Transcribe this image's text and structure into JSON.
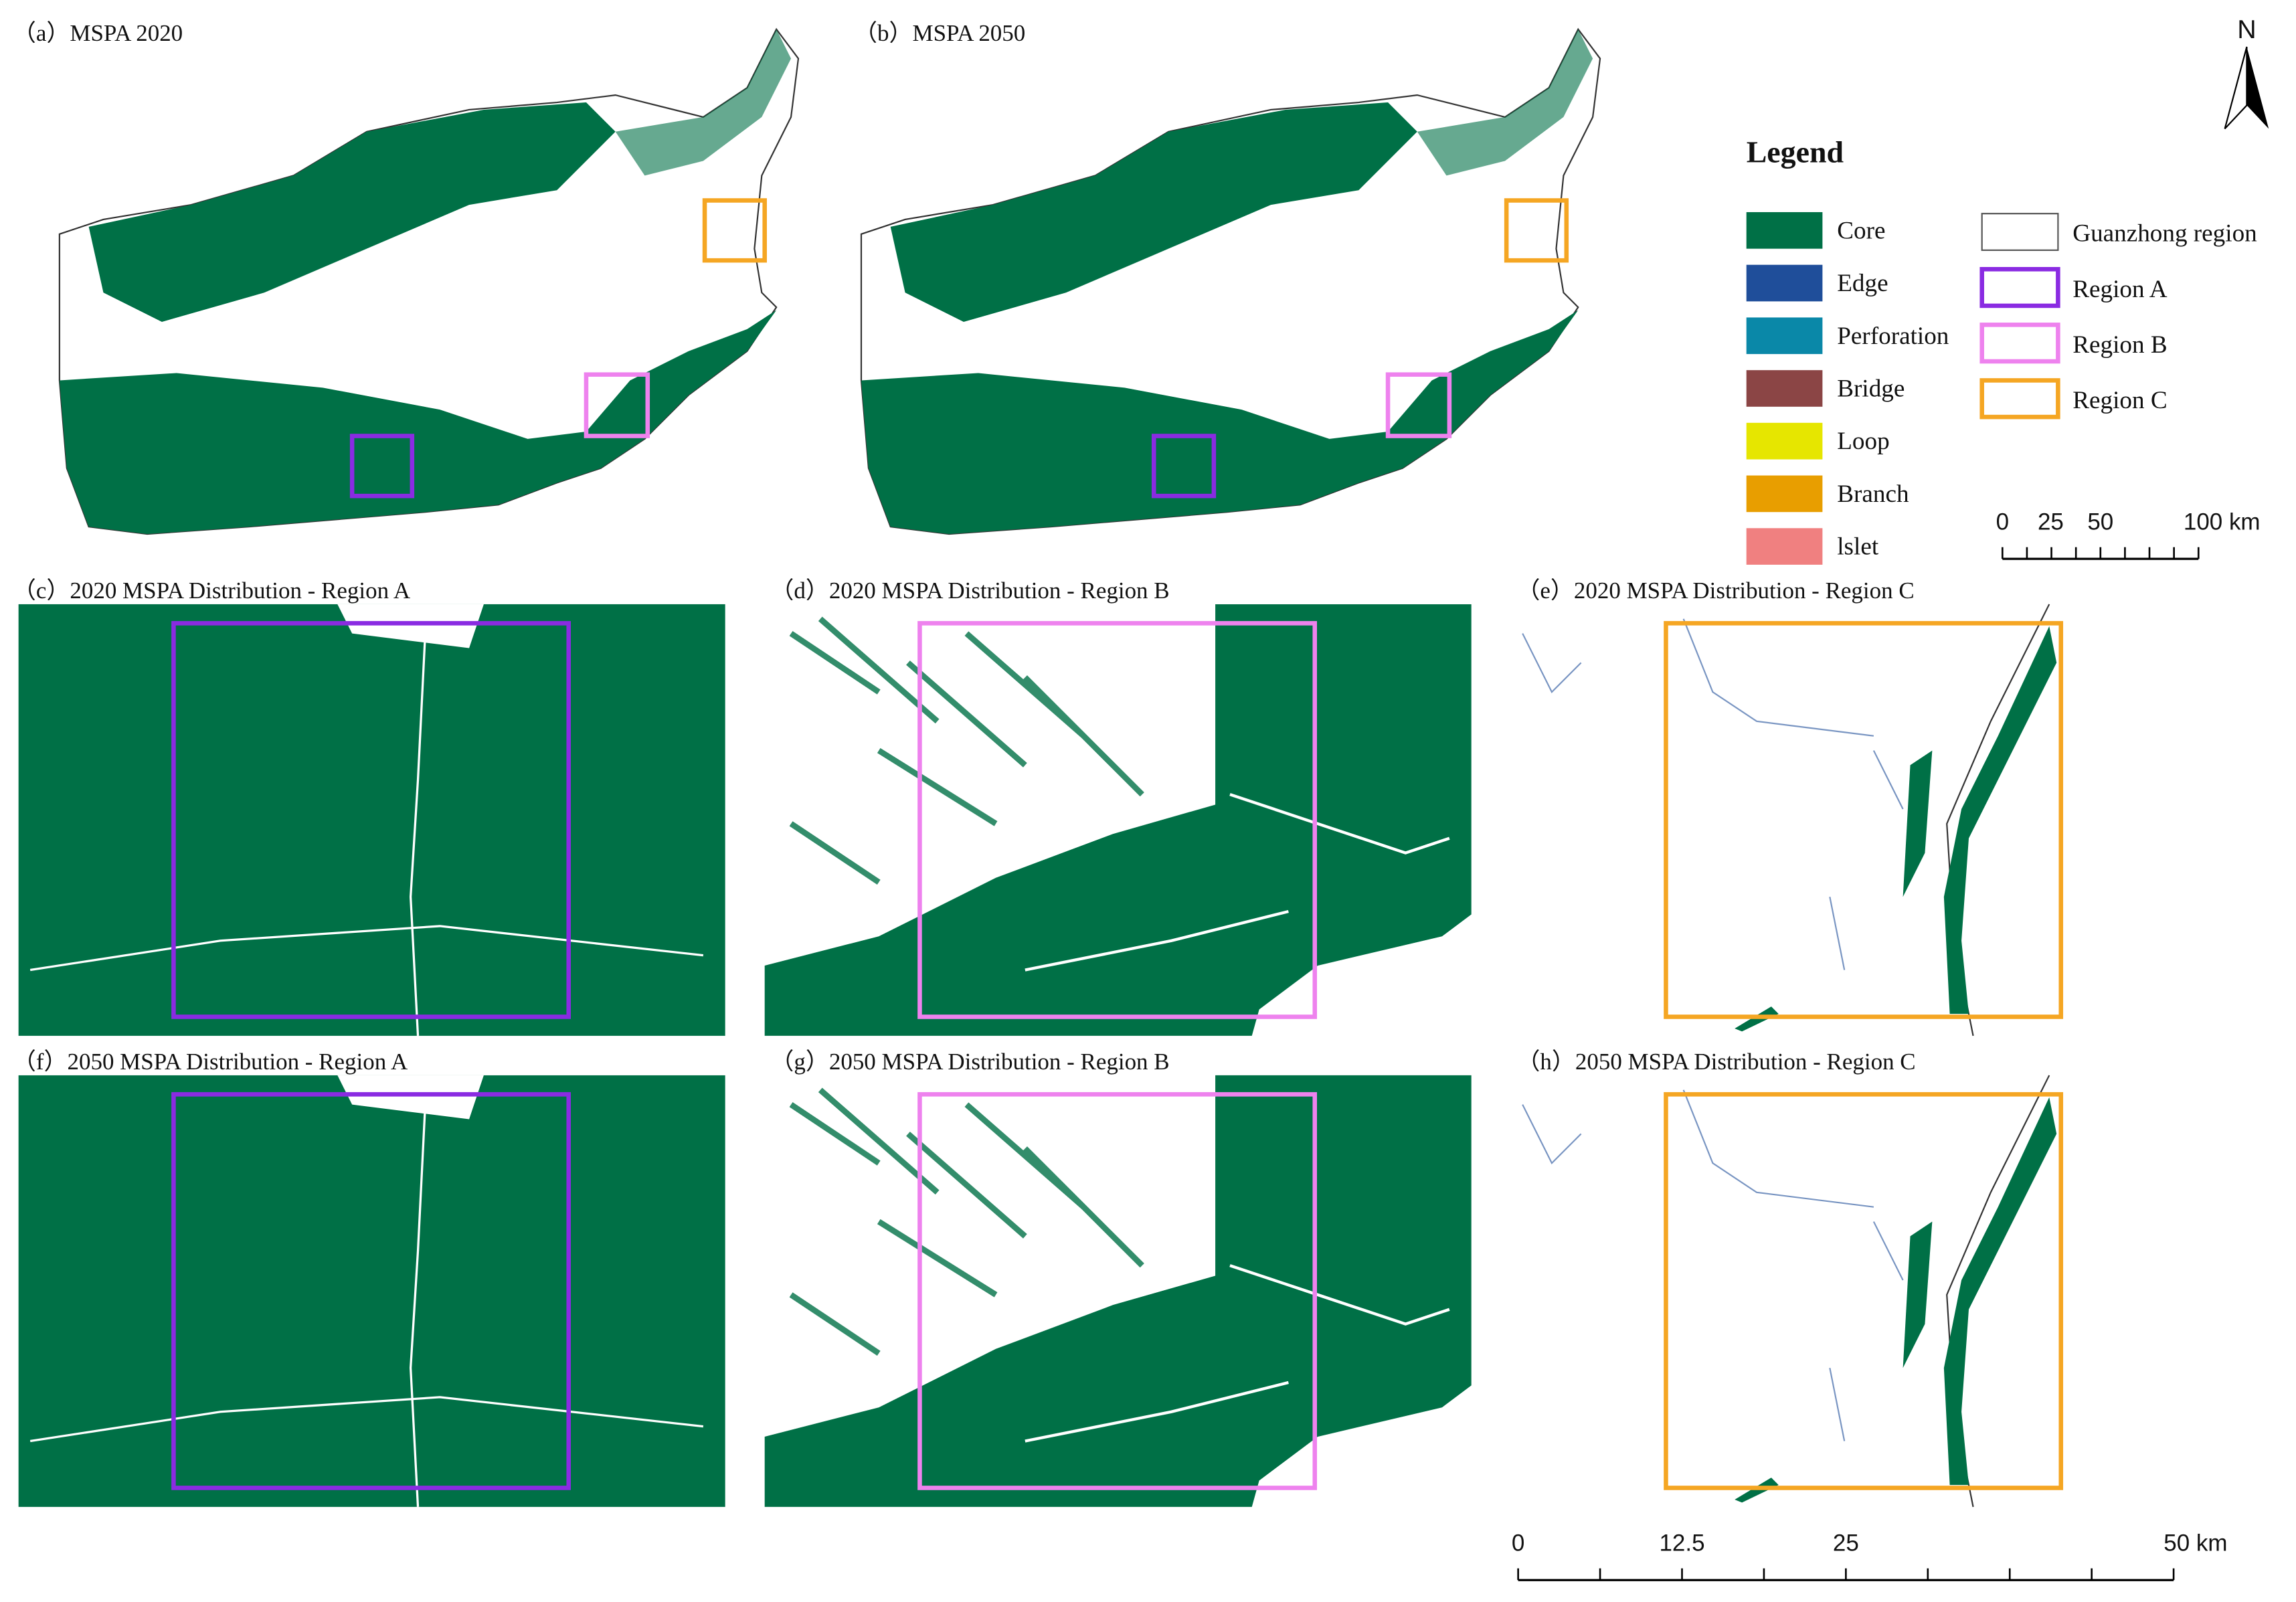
{
  "panels": [
    {
      "label": "（a）MSPA 2020"
    },
    {
      "label": "（b）MSPA 2050"
    },
    {
      "label": "（c）2020 MSPA Distribution - Region A"
    },
    {
      "label": "（d）2020 MSPA Distribution - Region B"
    },
    {
      "label": "（e）2020 MSPA Distribution - Region C"
    },
    {
      "label": "（f）2050 MSPA Distribution - Region A"
    },
    {
      "label": "（g）2050 MSPA Distribution - Region B"
    },
    {
      "label": "（h）2050 MSPA Distribution - Region C"
    }
  ],
  "north_arrow": "N",
  "legend": {
    "title": "Legend",
    "classes": [
      {
        "name": "Core",
        "color": "#007046"
      },
      {
        "name": "Edge",
        "color": "#1f4e9a"
      },
      {
        "name": "Perforation",
        "color": "#0a88a8"
      },
      {
        "name": "Bridge",
        "color": "#8b4545"
      },
      {
        "name": "Loop",
        "color": "#e6e600"
      },
      {
        "name": "Branch",
        "color": "#e89e00"
      },
      {
        "name": "lslet",
        "color": "#f08080"
      }
    ],
    "boundaries": [
      {
        "name": "Guanzhong region",
        "color": "#555555"
      },
      {
        "name": "Region A",
        "color": "#8a2be2"
      },
      {
        "name": "Region B",
        "color": "#ee82ee"
      },
      {
        "name": "Region C",
        "color": "#f5a623"
      }
    ]
  },
  "scale_bar_small": {
    "labels": [
      "0",
      "25",
      "50",
      "100 km"
    ]
  },
  "scale_bar_large": {
    "labels": [
      "0",
      "12.5",
      "25",
      "50 km"
    ]
  }
}
